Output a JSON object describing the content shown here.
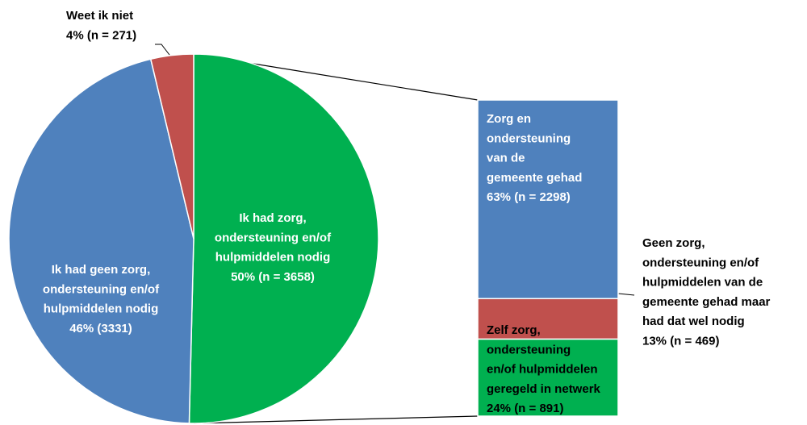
{
  "chart_data": {
    "type": "bar-of-pie",
    "pie": {
      "labels": [
        [
          "Ik had zorg,",
          "ondersteuning en/of",
          "hulpmiddelen nodig"
        ],
        [
          "Ik had geen zorg,",
          "ondersteuning en/of",
          "hulpmiddelen nodig"
        ],
        [
          "Weet ik niet"
        ]
      ],
      "values": [
        3658,
        3331,
        271
      ],
      "value_labels": [
        "50% (n = 3658)",
        "46% (3331)",
        "4% (n = 271)"
      ],
      "colors": [
        "#00b050",
        "#4f81bd",
        "#c0504d"
      ]
    },
    "bar": {
      "labels": [
        [
          "Zorg en",
          "ondersteuning",
          "van de",
          "gemeente gehad"
        ],
        [
          "Geen zorg,",
          "ondersteuning en/of",
          "hulpmiddelen van de",
          "gemeente gehad maar",
          "had dat wel nodig"
        ],
        [
          "Zelf zorg,",
          "ondersteuning",
          "en/of hulpmiddelen",
          "geregeld in netwerk"
        ]
      ],
      "values": [
        2298,
        469,
        891
      ],
      "value_labels": [
        "63% (n = 2298)",
        "13% (n = 469)",
        "24% (n = 891)"
      ],
      "colors": [
        "#4f81bd",
        "#c0504d",
        "#00b050"
      ]
    }
  }
}
